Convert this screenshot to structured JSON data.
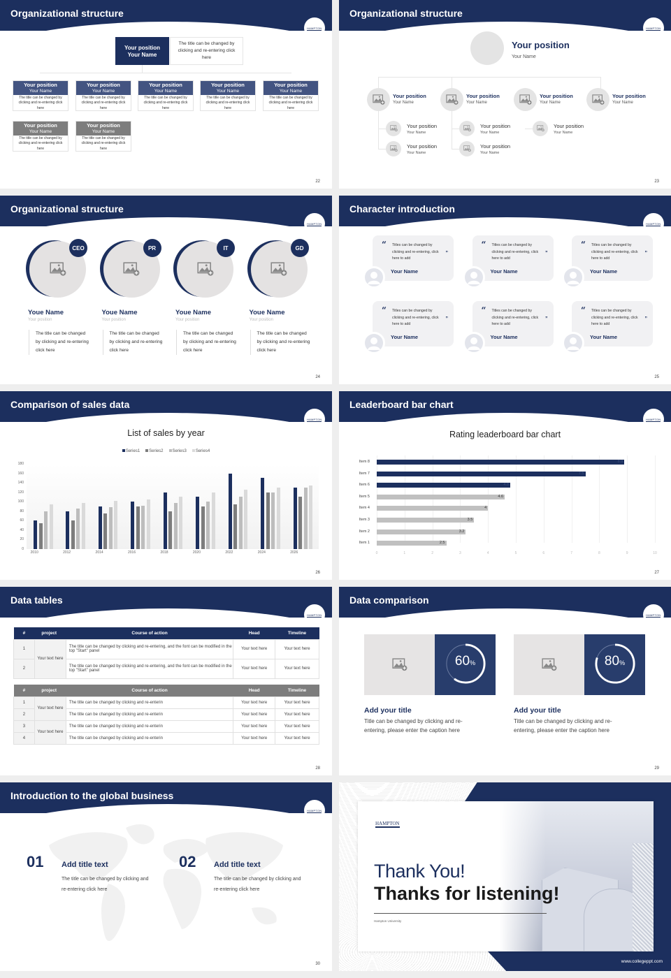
{
  "colors": {
    "navy": "#1c2f5e",
    "midnavy": "#435481",
    "gray_dark": "#7d7d7d",
    "gray": "#bdbdbd",
    "gray_light": "#dadada",
    "placeholder_bg": "#e4e4e4"
  },
  "logo_text": "HAMPTON",
  "slides": {
    "s22": {
      "title": "Organizational structure",
      "page": "22",
      "top": {
        "position": "Your position",
        "name": "Your Name",
        "desc": "The title can be changed by clicking and re-entering click here"
      },
      "boxes": [
        {
          "position": "Your position",
          "name": "Your Name",
          "desc": "The title can be changed by clicking and re-entering click here",
          "style": "navy"
        },
        {
          "position": "Your position",
          "name": "Your Name",
          "desc": "The title can be changed by clicking and re-entering click here",
          "style": "navy"
        },
        {
          "position": "Your position",
          "name": "Your Name",
          "desc": "The title can be changed by clicking and re-entering click here",
          "style": "navy"
        },
        {
          "position": "Your position",
          "name": "Your Name",
          "desc": "The title can be changed by clicking and re-entering click here",
          "style": "navy"
        },
        {
          "position": "Your position",
          "name": "Your Name",
          "desc": "The title can be changed by clicking and re-entering click here",
          "style": "navy"
        },
        {
          "position": "Your position",
          "name": "Your Name",
          "desc": "The title can be changed by clicking and re-entering click here",
          "style": "gray"
        },
        {
          "position": "Your position",
          "name": "Your Name",
          "desc": "The title can be changed by clicking and re-entering click here",
          "style": "gray"
        }
      ]
    },
    "s23": {
      "title": "Organizational structure",
      "page": "23",
      "top": {
        "position": "Your position",
        "name": "Your Name"
      },
      "level1": [
        {
          "position": "Your position",
          "name": "Your Name"
        },
        {
          "position": "Your position",
          "name": "Your Name"
        },
        {
          "position": "Your position",
          "name": "Your Name"
        },
        {
          "position": "Your position",
          "name": "Your Name"
        }
      ],
      "level2": [
        {
          "position": "Your position",
          "name": "Your Name"
        },
        {
          "position": "Your position",
          "name": "Your Name"
        },
        {
          "position": "Your position",
          "name": "Your Name"
        },
        {
          "position": "Your position",
          "name": "Your Name"
        },
        {
          "position": "Your position",
          "name": "Your Name"
        }
      ]
    },
    "s24": {
      "title": "Organizational structure",
      "page": "24",
      "people": [
        {
          "role": "CEO",
          "name": "Youe Name",
          "position": "Your position",
          "desc": "The title can be changed by clicking and re-entering click here"
        },
        {
          "role": "PR",
          "name": "Youe Name",
          "position": "Your position",
          "desc": "The title can be changed by clicking and re-entering click here"
        },
        {
          "role": "IT",
          "name": "Youe Name",
          "position": "Your position",
          "desc": "The title can be changed by clicking and re-entering click here"
        },
        {
          "role": "GD",
          "name": "Youe Name",
          "position": "Your position",
          "desc": "The title can be changed by clicking and re-entering click here"
        }
      ]
    },
    "s25": {
      "title": "Character introduction",
      "page": "25",
      "open_quote": "“",
      "close_quote": "”",
      "cards": [
        {
          "text": "Titles can be changed by clicking and re-entering, click here to add",
          "name": "Your Name"
        },
        {
          "text": "Titles can be changed by clicking and re-entering, click here to add",
          "name": "Your Name"
        },
        {
          "text": "Titles can be changed by clicking and re-entering, click here to add",
          "name": "Your Name"
        },
        {
          "text": "Titles can be changed by clicking and re-entering, click here to add",
          "name": "Your Name"
        },
        {
          "text": "Titles can be changed by clicking and re-entering, click here to add",
          "name": "Your Name"
        },
        {
          "text": "Titles can be changed by clicking and re-entering, click here to add",
          "name": "Your Name"
        }
      ]
    },
    "s26": {
      "title": "Comparison of sales data",
      "page": "26"
    },
    "s27": {
      "title": "Leaderboard bar chart",
      "page": "27"
    },
    "s28": {
      "title": "Data tables",
      "page": "28",
      "headers": [
        "#",
        "project",
        "Course of action",
        "Head",
        "Timeline"
      ],
      "table1": {
        "project_groups": [
          "Your text here"
        ],
        "rows": [
          {
            "n": "1",
            "action": "The title can be changed by clicking and re-entering, and the font can be modified in the top \"Start\" panel",
            "head": "Your text here",
            "timeline": "Your text here"
          },
          {
            "n": "2",
            "action": "The title can be changed by clicking and re-entering, and the font can be modified in the top \"Start\" panel",
            "head": "Your text here",
            "timeline": "Your text here"
          }
        ]
      },
      "table2": {
        "project_groups": [
          "Your text here",
          "Your text here"
        ],
        "rows": [
          {
            "n": "1",
            "action": "The title can be changed by clicking and re-enterin",
            "head": "Your text here",
            "timeline": "Your text here"
          },
          {
            "n": "2",
            "action": "The title can be changed by clicking and re-enterin",
            "head": "Your text here",
            "timeline": "Your text here"
          },
          {
            "n": "3",
            "action": "The title can be changed by clicking and re-enterin",
            "head": "Your text here",
            "timeline": "Your text here"
          },
          {
            "n": "4",
            "action": "The title can be changed by clicking and re-enterin",
            "head": "Your text here",
            "timeline": "Your text here"
          }
        ]
      }
    },
    "s29": {
      "title": "Data comparison",
      "page": "29",
      "items": [
        {
          "value": "60",
          "unit": "%",
          "percent": 60,
          "heading": "Add your title",
          "desc": "Title can be changed by clicking and re-entering, please enter the caption here"
        },
        {
          "value": "80",
          "unit": "%",
          "percent": 80,
          "heading": "Add your title",
          "desc": "Title can be changed by clicking and re-entering, please enter the caption here"
        }
      ]
    },
    "s30": {
      "title": "Introduction to the global business",
      "page": "30",
      "items": [
        {
          "num": "01",
          "heading": "Add title text",
          "desc": "The title can be changed by clicking and re-entering click here"
        },
        {
          "num": "02",
          "heading": "Add title text",
          "desc": "The title can be changed by clicking and re-entering click here"
        }
      ]
    },
    "s31": {
      "logo": "HAMPTON",
      "thank": "Thank You!",
      "thanks": "Thanks for listening!",
      "university": "Hampton University",
      "url": "www.collegeppt.com"
    }
  },
  "chart_data": [
    {
      "type": "bar",
      "title": "List of sales by year",
      "categories": [
        "2010",
        "2012",
        "2014",
        "2016",
        "2018",
        "2020",
        "2022",
        "2024",
        "2026"
      ],
      "series": [
        {
          "name": "Series1",
          "color": "#1c2f5e",
          "values": [
            60,
            80,
            90,
            100,
            120,
            110,
            160,
            150,
            130
          ]
        },
        {
          "name": "Series2",
          "color": "#7d7d7d",
          "values": [
            55,
            60,
            75,
            90,
            80,
            90,
            95,
            120,
            110
          ]
        },
        {
          "name": "Series3",
          "color": "#bdbdbd",
          "values": [
            80,
            85,
            88,
            92,
            98,
            100,
            110,
            120,
            130
          ]
        },
        {
          "name": "Series4",
          "color": "#dadada",
          "values": [
            95,
            98,
            102,
            105,
            110,
            120,
            125,
            130,
            135
          ]
        }
      ],
      "yticks": [
        "0",
        "20",
        "40",
        "60",
        "80",
        "100",
        "120",
        "140",
        "160",
        "180"
      ],
      "ylim": [
        0,
        180
      ],
      "legend_position": "top",
      "grid": false,
      "xlabel": "",
      "ylabel": ""
    },
    {
      "type": "bar",
      "orientation": "horizontal",
      "title": "Rating leaderboard bar chart",
      "categories": [
        "Item 8",
        "Item 7",
        "Item 6",
        "Item 5",
        "Item 4",
        "Item 3",
        "Item 2",
        "Item 1"
      ],
      "values": [
        8.9,
        7.5,
        4.8,
        4.6,
        4,
        3.5,
        3.2,
        2.5
      ],
      "labels": [
        "8.9",
        "7.5",
        "4.8",
        "4.6",
        "4",
        "3.5",
        "3.2",
        "2.5"
      ],
      "highlight_top": 3,
      "xticks": [
        "0",
        "1",
        "2",
        "3",
        "4",
        "5",
        "6",
        "7",
        "8",
        "9",
        "10"
      ],
      "xlim": [
        0,
        10
      ],
      "grid": true,
      "xlabel": "",
      "ylabel": ""
    }
  ]
}
